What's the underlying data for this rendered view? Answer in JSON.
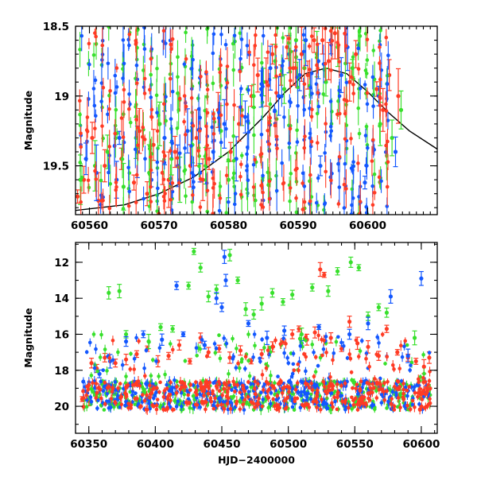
{
  "colors": {
    "red": "#ff3b24",
    "green": "#38e02c",
    "blue": "#1357ff",
    "model_curve": "#000000"
  },
  "chart_data": [
    {
      "type": "scatter",
      "ylabel": "Magnitude",
      "xlim": [
        60558,
        60610
      ],
      "ylim": [
        19.85,
        18.5
      ],
      "y_inverted": true,
      "x_ticks": [
        60560,
        60570,
        60580,
        60590,
        60600
      ],
      "y_ticks": [
        18.5,
        19,
        19.5
      ],
      "y_tick_labels": [
        "18.5",
        "19",
        "19.5"
      ],
      "grid": false,
      "legend": "none",
      "series": [
        {
          "color": "red",
          "points": [
            [
              60558.3,
              19.72
            ],
            [
              60559.2,
              19.6
            ],
            [
              60560.4,
              19.3
            ],
            [
              60561.3,
              19.75
            ],
            [
              60562.2,
              19.5
            ],
            [
              60564.6,
              19.45
            ],
            [
              60566.4,
              19.62
            ],
            [
              60567.2,
              19.25
            ],
            [
              60568.3,
              19.7
            ],
            [
              60569.2,
              19.35
            ],
            [
              60570.5,
              19.55
            ],
            [
              60571.4,
              19.6
            ],
            [
              60572.3,
              19.4
            ],
            [
              60574.5,
              19.5
            ],
            [
              60575.4,
              19.3
            ],
            [
              60576.3,
              19.6
            ],
            [
              60577.2,
              19.45
            ],
            [
              60578.5,
              19.1
            ],
            [
              60580.3,
              19.4
            ],
            [
              60581.5,
              19.2
            ],
            [
              60583.3,
              19.0
            ],
            [
              60584.2,
              18.85
            ],
            [
              60585.4,
              18.9
            ],
            [
              60586.3,
              18.7
            ],
            [
              60587.5,
              18.85
            ],
            [
              60588.4,
              18.65
            ],
            [
              60589.3,
              18.8
            ],
            [
              60590.5,
              18.7
            ],
            [
              60591.4,
              18.85
            ],
            [
              60592.3,
              18.6
            ],
            [
              60593.5,
              18.6
            ],
            [
              60594.4,
              18.75
            ],
            [
              60595.3,
              18.55
            ],
            [
              60597.4,
              18.9
            ],
            [
              60598.3,
              18.7
            ],
            [
              60601.3,
              18.95
            ],
            [
              60602.2,
              19.1
            ],
            [
              60603.1,
              18.85
            ],
            [
              60604.4,
              19.0
            ]
          ]
        },
        {
          "color": "green",
          "points": [
            [
              60558.7,
              19.6
            ],
            [
              60560.8,
              19.5
            ],
            [
              60562.6,
              19.4
            ],
            [
              60564.9,
              19.65
            ],
            [
              60566.7,
              19.3
            ],
            [
              60568.6,
              19.55
            ],
            [
              60570.1,
              19.2
            ],
            [
              60571.8,
              19.45
            ],
            [
              60573.0,
              19.6
            ],
            [
              60574.8,
              19.35
            ],
            [
              60576.7,
              19.5
            ],
            [
              60578.9,
              19.25
            ],
            [
              60580.0,
              19.6
            ],
            [
              60581.9,
              19.1
            ],
            [
              60583.6,
              19.0
            ],
            [
              60585.0,
              18.9
            ],
            [
              60586.7,
              18.75
            ],
            [
              60588.0,
              18.95
            ],
            [
              60589.7,
              18.6
            ],
            [
              60590.9,
              18.8
            ],
            [
              60592.7,
              18.7
            ],
            [
              60594.0,
              18.9
            ],
            [
              60595.7,
              18.65
            ],
            [
              60597.8,
              18.8
            ],
            [
              60601.8,
              19.2
            ],
            [
              60603.5,
              19.3
            ],
            [
              60604.8,
              19.1
            ]
          ]
        },
        {
          "color": "blue",
          "points": [
            [
              60559.5,
              19.45
            ],
            [
              60561.0,
              19.55
            ],
            [
              60563.9,
              19.6
            ],
            [
              60564.3,
              19.3
            ],
            [
              60566.9,
              19.4
            ],
            [
              60568.9,
              19.6
            ],
            [
              60570.8,
              19.3
            ],
            [
              60572.7,
              19.5
            ],
            [
              60574.1,
              19.25
            ],
            [
              60575.9,
              19.55
            ],
            [
              60577.8,
              19.4
            ],
            [
              60579.4,
              19.2
            ],
            [
              60581.1,
              19.45
            ],
            [
              60582.4,
              19.15
            ],
            [
              60584.7,
              18.95
            ],
            [
              60586.0,
              18.8
            ],
            [
              60587.2,
              19.0
            ],
            [
              60588.7,
              18.7
            ],
            [
              60590.2,
              18.85
            ],
            [
              60591.1,
              18.6
            ],
            [
              60592.9,
              18.75
            ],
            [
              60593.2,
              19.5
            ],
            [
              60594.7,
              18.6
            ],
            [
              60596.2,
              18.85
            ],
            [
              60597.1,
              18.65
            ],
            [
              60599.6,
              19.62
            ],
            [
              60601.6,
              19.0
            ],
            [
              60604.0,
              19.4
            ]
          ]
        }
      ],
      "model_curve": [
        [
          60558,
          19.82
        ],
        [
          60565,
          19.78
        ],
        [
          60570,
          19.7
        ],
        [
          60575,
          19.58
        ],
        [
          60580,
          19.4
        ],
        [
          60585,
          19.15
        ],
        [
          60588,
          18.98
        ],
        [
          60591,
          18.84
        ],
        [
          60594,
          18.8
        ],
        [
          60597,
          18.84
        ],
        [
          60600,
          18.97
        ],
        [
          60603,
          19.12
        ],
        [
          60606,
          19.25
        ],
        [
          60610,
          19.38
        ]
      ]
    },
    {
      "type": "scatter",
      "xlabel": "HJD−2400000",
      "ylabel": "Magnitude",
      "xlim": [
        60340,
        60612
      ],
      "ylim": [
        21.5,
        10.9
      ],
      "y_inverted": true,
      "x_ticks": [
        60350,
        60400,
        60450,
        60500,
        60550,
        60600
      ],
      "y_ticks": [
        12,
        14,
        16,
        18,
        20
      ],
      "y_tick_labels": [
        "12",
        "14",
        "16",
        "18",
        "20"
      ],
      "grid": false,
      "legend": "none",
      "series": [
        {
          "color": "red",
          "points": [
            [
              60345,
              19.6
            ],
            [
              60350,
              19.7
            ],
            [
              60352,
              17.6
            ],
            [
              60356,
              17.9
            ],
            [
              60362,
              17.3
            ],
            [
              60370,
              17.6
            ],
            [
              60378,
              17.4
            ],
            [
              60386,
              17.1
            ],
            [
              60394,
              16.8
            ],
            [
              60402,
              17.5
            ],
            [
              60410,
              17.2
            ],
            [
              60418,
              16.6
            ],
            [
              60426,
              17.5
            ],
            [
              60434,
              16.2
            ],
            [
              60440,
              17.0
            ],
            [
              60448,
              16.8
            ],
            [
              60456,
              17.3
            ],
            [
              60464,
              16.9
            ],
            [
              60472,
              17.5
            ],
            [
              60480,
              17.1
            ],
            [
              60488,
              16.7
            ],
            [
              60496,
              16.4
            ],
            [
              60503,
              16.0
            ],
            [
              60508,
              15.7
            ],
            [
              60514,
              16.3
            ],
            [
              60520,
              15.9
            ],
            [
              60524,
              12.4
            ],
            [
              60527,
              12.7
            ],
            [
              60532,
              16.2
            ],
            [
              60540,
              16.8
            ],
            [
              60546,
              15.3
            ],
            [
              60552,
              16.5
            ],
            [
              60560,
              16.7
            ],
            [
              60568,
              17.2
            ],
            [
              60574,
              15.7
            ],
            [
              60582,
              17.0
            ],
            [
              60590,
              17.3
            ],
            [
              60596,
              17.5
            ],
            [
              60602,
              17.8
            ],
            [
              60606,
              17.3
            ]
          ]
        },
        {
          "color": "green",
          "points": [
            [
              60365,
              13.7
            ],
            [
              60373,
              13.6
            ],
            [
              60378,
              16.0
            ],
            [
              60395,
              16.4
            ],
            [
              60404,
              15.6
            ],
            [
              60413,
              15.7
            ],
            [
              60425,
              13.3
            ],
            [
              60429,
              11.4
            ],
            [
              60434,
              12.3
            ],
            [
              60440,
              13.9
            ],
            [
              60446,
              13.5
            ],
            [
              60456,
              11.6
            ],
            [
              60462,
              13.0
            ],
            [
              60468,
              14.6
            ],
            [
              60474,
              14.9
            ],
            [
              60480,
              14.3
            ],
            [
              60488,
              13.7
            ],
            [
              60496,
              14.2
            ],
            [
              60503,
              13.8
            ],
            [
              60510,
              16.0
            ],
            [
              60518,
              13.4
            ],
            [
              60530,
              13.6
            ],
            [
              60537,
              12.5
            ],
            [
              60547,
              12.0
            ],
            [
              60553,
              12.3
            ],
            [
              60560,
              15.0
            ],
            [
              60568,
              14.5
            ],
            [
              60574,
              14.8
            ],
            [
              60595,
              16.2
            ]
          ]
        },
        {
          "color": "blue",
          "points": [
            [
              60358,
              18.2
            ],
            [
              60366,
              17.5
            ],
            [
              60378,
              16.4
            ],
            [
              60391,
              16.0
            ],
            [
              60405,
              16.3
            ],
            [
              60416,
              13.3
            ],
            [
              60421,
              16.0
            ],
            [
              60437,
              16.6
            ],
            [
              60446,
              14.0
            ],
            [
              60450,
              14.5
            ],
            [
              60452,
              11.7
            ],
            [
              60453,
              13.0
            ],
            [
              60470,
              15.4
            ],
            [
              60484,
              16.2
            ],
            [
              60497,
              15.8
            ],
            [
              60510,
              16.5
            ],
            [
              60523,
              15.6
            ],
            [
              60546,
              16.0
            ],
            [
              60560,
              15.4
            ],
            [
              60577,
              13.9
            ],
            [
              60590,
              17.2
            ],
            [
              60600,
              12.9
            ]
          ]
        }
      ]
    }
  ]
}
